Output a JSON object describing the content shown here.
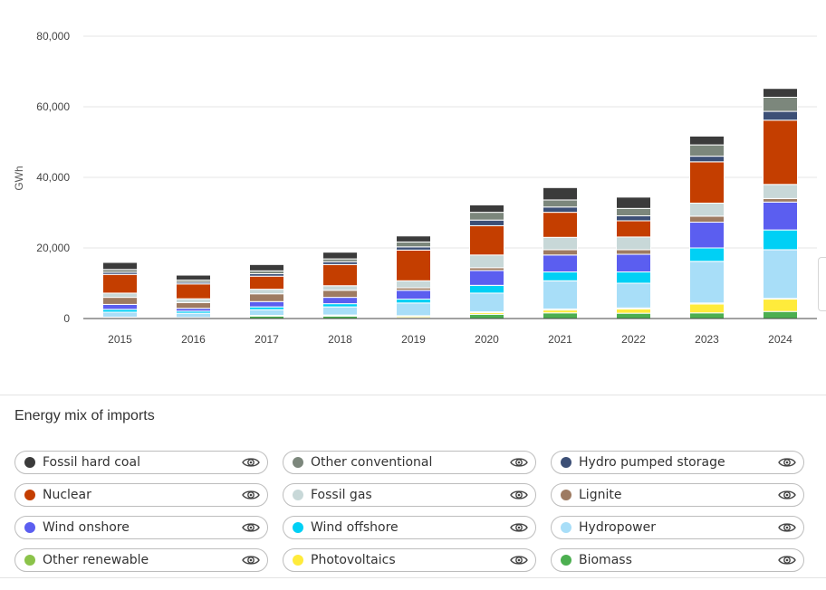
{
  "chart_data": {
    "type": "bar",
    "stacked": true,
    "title": "",
    "xlabel": "",
    "ylabel": "GWh",
    "ylim": [
      0,
      80000
    ],
    "yticks": [
      0,
      20000,
      40000,
      60000,
      80000
    ],
    "ytick_labels": [
      "0",
      "20,000",
      "40,000",
      "60,000",
      "80,000"
    ],
    "grid": true,
    "legend_placement": "bottom",
    "categories": [
      "2015",
      "2016",
      "2017",
      "2018",
      "2019",
      "2020",
      "2021",
      "2022",
      "2023",
      "2024"
    ],
    "series": [
      {
        "name": "Biomass",
        "color": "#4caf50",
        "values": [
          200,
          150,
          700,
          700,
          300,
          1200,
          1600,
          1500,
          1600,
          2000
        ]
      },
      {
        "name": "Photovoltaics",
        "color": "#ffeb3b",
        "values": [
          150,
          100,
          150,
          200,
          400,
          500,
          800,
          1200,
          2500,
          3500
        ]
      },
      {
        "name": "Other renewable",
        "color": "#8bc34a",
        "values": [
          50,
          50,
          50,
          100,
          100,
          200,
          300,
          300,
          300,
          200
        ]
      },
      {
        "name": "Hydropower",
        "color": "#a8def8",
        "values": [
          1400,
          1200,
          1600,
          2300,
          3600,
          5300,
          8000,
          7000,
          11800,
          13800
        ]
      },
      {
        "name": "Wind offshore",
        "color": "#00d0f5",
        "values": [
          800,
          600,
          800,
          900,
          1100,
          2200,
          2500,
          3200,
          3800,
          5600
        ]
      },
      {
        "name": "Wind onshore",
        "color": "#5b5ef0",
        "values": [
          1400,
          800,
          1500,
          1800,
          2500,
          4200,
          4800,
          5000,
          7300,
          7900
        ]
      },
      {
        "name": "Lignite",
        "color": "#9e7b62",
        "values": [
          2000,
          1600,
          2200,
          2000,
          700,
          800,
          1500,
          1300,
          1700,
          1000
        ]
      },
      {
        "name": "Fossil gas",
        "color": "#c8d8d8",
        "values": [
          1200,
          1100,
          1300,
          1300,
          2000,
          3600,
          3500,
          3600,
          3700,
          4000
        ]
      },
      {
        "name": "Nuclear",
        "color": "#c43e00",
        "values": [
          5300,
          4200,
          3700,
          6000,
          8700,
          8300,
          7100,
          4600,
          11700,
          18200
        ]
      },
      {
        "name": "Hydro pumped storage",
        "color": "#3c4f76",
        "values": [
          600,
          500,
          700,
          800,
          900,
          1600,
          1500,
          1400,
          1600,
          2500
        ]
      },
      {
        "name": "Other conventional",
        "color": "#7c877c",
        "values": [
          800,
          600,
          800,
          800,
          1400,
          2200,
          2000,
          2100,
          3200,
          4000
        ]
      },
      {
        "name": "Fossil hard coal",
        "color": "#3b3b3b",
        "values": [
          2000,
          1400,
          1800,
          1900,
          1700,
          2100,
          3500,
          3200,
          2500,
          2500
        ]
      }
    ]
  },
  "legend": {
    "title": "Energy mix of imports",
    "items": [
      {
        "label": "Fossil hard coal",
        "color": "#3b3b3b"
      },
      {
        "label": "Other conventional",
        "color": "#7c877c"
      },
      {
        "label": "Hydro pumped storage",
        "color": "#3c4f76"
      },
      {
        "label": "Nuclear",
        "color": "#c43e00"
      },
      {
        "label": "Fossil gas",
        "color": "#c8d8d8"
      },
      {
        "label": "Lignite",
        "color": "#9e7b62"
      },
      {
        "label": "Wind onshore",
        "color": "#5b5ef0"
      },
      {
        "label": "Wind offshore",
        "color": "#00d0f5"
      },
      {
        "label": "Hydropower",
        "color": "#a8def8"
      },
      {
        "label": "Other renewable",
        "color": "#8bc34a"
      },
      {
        "label": "Photovoltaics",
        "color": "#ffeb3b"
      },
      {
        "label": "Biomass",
        "color": "#4caf50"
      }
    ],
    "toggle_icon": "eye-icon"
  }
}
